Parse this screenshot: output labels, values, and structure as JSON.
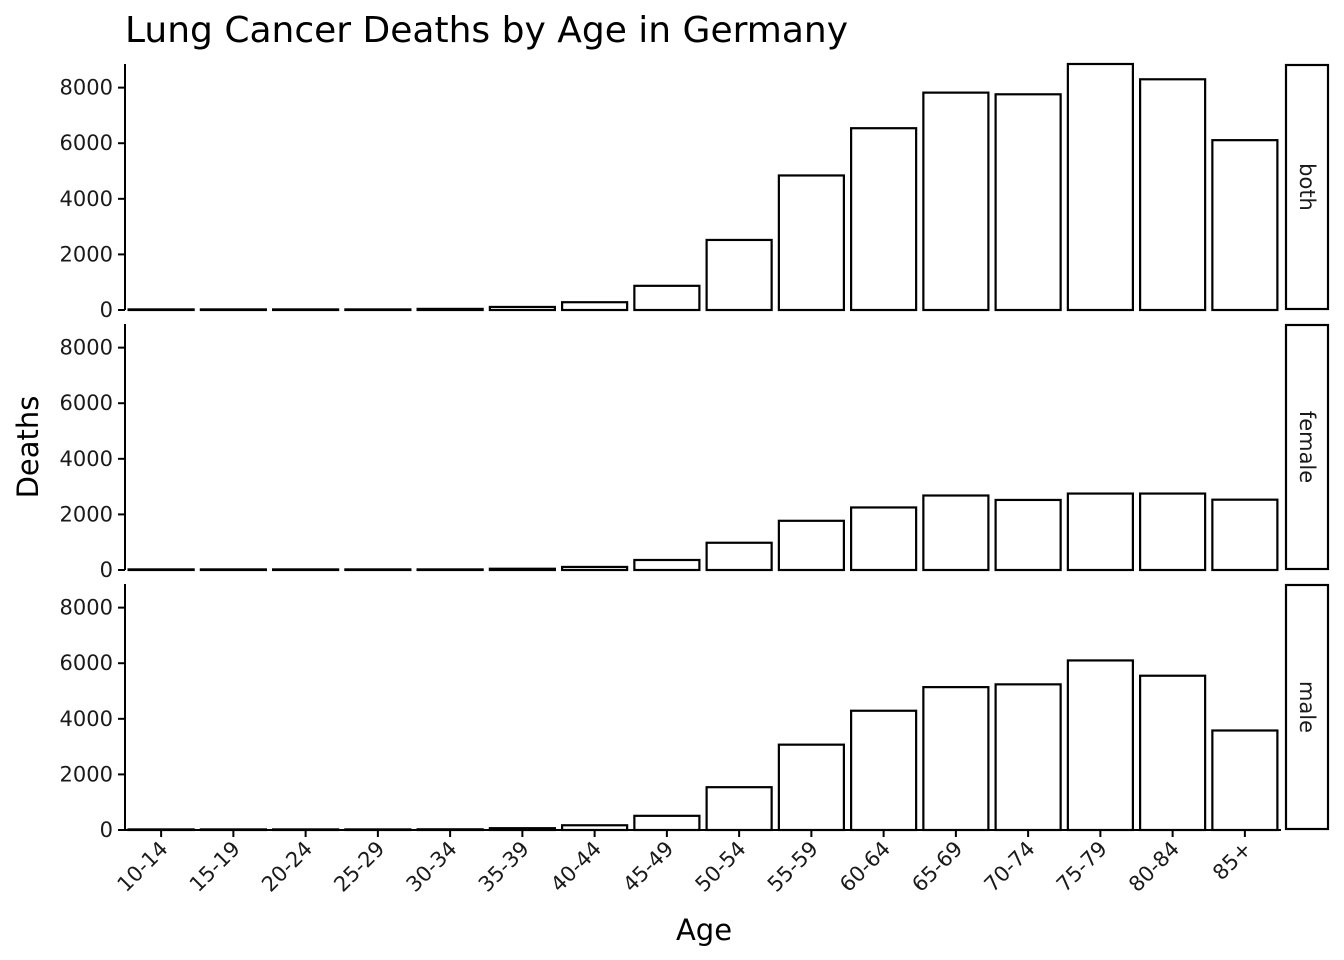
{
  "chart_data": {
    "type": "bar",
    "title": "Lung Cancer Deaths by Age in Germany",
    "xlabel": "Age",
    "ylabel": "Deaths",
    "ylim": [
      0,
      8850
    ],
    "yticks": [
      0,
      2000,
      4000,
      6000,
      8000
    ],
    "categories": [
      "10-14",
      "15-19",
      "20-24",
      "25-29",
      "30-34",
      "35-39",
      "40-44",
      "45-49",
      "50-54",
      "55-59",
      "60-64",
      "65-69",
      "70-74",
      "75-79",
      "80-84",
      "85+"
    ],
    "facets": [
      {
        "name": "both",
        "values": [
          2,
          3,
          8,
          15,
          40,
          110,
          280,
          870,
          2520,
          4840,
          6540,
          7820,
          7760,
          8850,
          8300,
          6110
        ]
      },
      {
        "name": "female",
        "values": [
          1,
          1,
          3,
          6,
          15,
          45,
          110,
          360,
          980,
          1770,
          2250,
          2680,
          2520,
          2750,
          2750,
          2530
        ]
      },
      {
        "name": "male",
        "values": [
          1,
          2,
          5,
          9,
          25,
          65,
          170,
          510,
          1540,
          3070,
          4290,
          5140,
          5240,
          6100,
          5550,
          3580
        ]
      }
    ]
  }
}
